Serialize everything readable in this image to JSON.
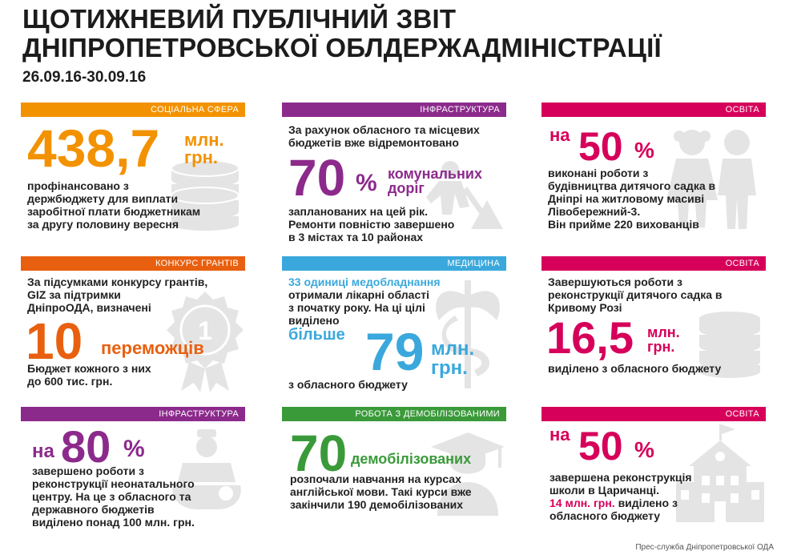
{
  "header": {
    "title_line1": "ЩОТИЖНЕВИЙ ПУБЛІЧНИЙ ЗВІТ",
    "title_line2": "ДНІПРОПЕТРОВСЬКОЇ ОБЛДЕРЖАДМІНІСТРАЦІЇ",
    "dates": "26.09.16-30.09.16"
  },
  "colors": {
    "orange": "#f39200",
    "purple": "#8c2a8c",
    "magenta": "#d6005a",
    "dark_orange": "#e8600f",
    "blue": "#3aa8dc",
    "green": "#3a9a3a"
  },
  "panels": {
    "social": {
      "category": "СОЦІАЛЬНА СФЕРА",
      "number": "438,7",
      "unit1": "млн.",
      "unit2": "грн.",
      "lines": [
        "профінансовано з",
        "держбюджету для виплати",
        "заробітної плати бюджетникам",
        "за другу половину вересня"
      ],
      "icon": "coins-stack-icon"
    },
    "infra1": {
      "category": "ІНФРАСТРУКТУРА",
      "intro": [
        "За рахунок обласного та місцевих",
        "бюджетів вже відремонтовано"
      ],
      "number": "70",
      "percent": "%",
      "word1": "комунальних",
      "word2": "доріг",
      "lines": [
        "запланованих на цей рік.",
        "Ремонти повністю завершено",
        "в 3 містах та 10 районах"
      ],
      "icon": "road-worker-icon"
    },
    "edu1": {
      "category": "ОСВІТА",
      "prefix": "на",
      "number": "50",
      "percent": "%",
      "lines": [
        "виконані роботи з",
        "будівництва дитячого садка в",
        "Дніпрі на житловому масиві",
        "Лівобережний-3.",
        "Він прийме 220 вихованців"
      ],
      "icon": "children-icon"
    },
    "grants": {
      "category": "КОНКУРС ГРАНТІВ",
      "intro": [
        "За підсумками конкурсу грантів,",
        "GIZ за підтримки",
        "ДніпроОДА, визначені"
      ],
      "number": "10",
      "word": "переможців",
      "lines": [
        "Бюджет кожного з них",
        "до 600 тис. грн."
      ],
      "icon": "medal-icon",
      "medal_text": "1"
    },
    "medicine": {
      "category": "МЕДИЦИНА",
      "intro": "33 одиниці медобладнання",
      "lines": [
        "отримали лікарні області",
        "з початку року. На ці цілі",
        "виділено"
      ],
      "more": "більше",
      "number": "79",
      "unit1": "млн.",
      "unit2": "грн.",
      "tail": "з обласного бюджету",
      "icon": "caduceus-icon"
    },
    "edu2": {
      "category": "ОСВІТА",
      "intro": [
        "Завершуються роботи з",
        "реконструкції дитячого садка в",
        "Кривому Розі"
      ],
      "number": "16,5",
      "unit1": "млн.",
      "unit2": "грн.",
      "tail": "виділено з обласного бюджету",
      "icon": "coins-stack-icon"
    },
    "infra2": {
      "category": "ІНФРАСТРУКТУРА",
      "prefix": "на",
      "number": "80",
      "percent": "%",
      "lines": [
        "завершено роботи з",
        "реконструкції неонатального",
        "центру. На це з обласного та",
        "державного бюджетів",
        "виділено понад 100 млн. грн."
      ],
      "icon": "doctor-icon"
    },
    "demob": {
      "category": "РОБОТА З ДЕМОБІЛІЗОВАНИМИ",
      "number": "70",
      "word": "демобілізованих",
      "lines": [
        "розпочали навчання на курсах",
        "англійської мови. Такі курси вже",
        "закінчили 190 демобілізованих"
      ],
      "icon": "graduate-icon"
    },
    "edu3": {
      "category": "ОСВІТА",
      "prefix": "на",
      "number": "50",
      "percent": "%",
      "lines": [
        "завершена реконструкція",
        "школи в Царичанці."
      ],
      "highlight": "14 млн. грн.",
      "after_highlight": " виділено з",
      "last_line": "обласного бюджету",
      "icon": "school-icon"
    }
  },
  "footer": "Прес-служба Дніпропетровської ОДА"
}
